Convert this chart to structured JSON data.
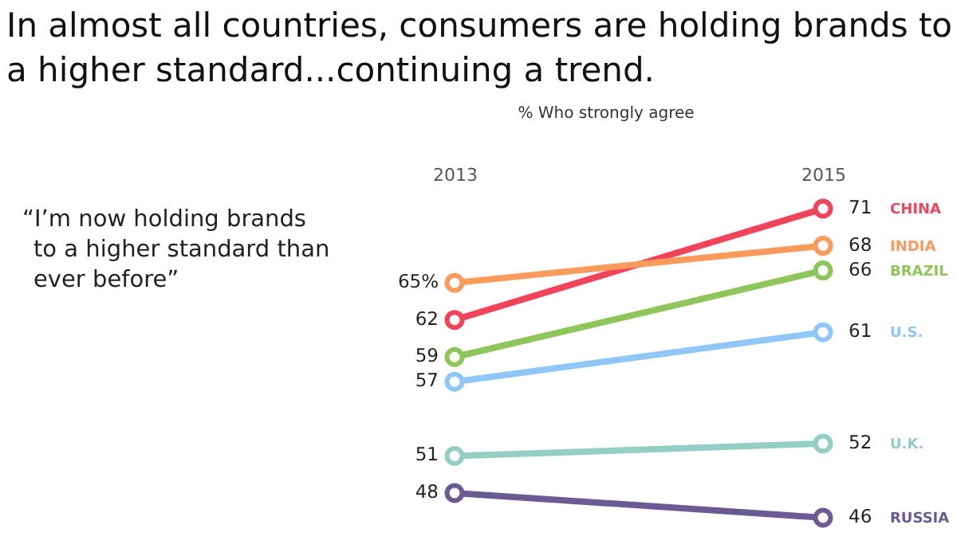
{
  "chart_data": {
    "type": "line",
    "title": "In almost all countries, consumers are holding brands to a higher standard...continuing a trend.",
    "subtitle": "% Who strongly agree",
    "annotations": [
      "“I’m now holding brands to a higher standard than ever before”"
    ],
    "categories": [
      "2013",
      "2015"
    ],
    "marker": "circle",
    "series": [
      {
        "name": "CHINA",
        "color": "#f2435b",
        "values": [
          62,
          71
        ],
        "value_labels": [
          "62",
          "71"
        ]
      },
      {
        "name": "INDIA",
        "color": "#fc9a5b",
        "values": [
          65,
          68
        ],
        "value_labels": [
          "65%",
          "68"
        ]
      },
      {
        "name": "BRAZIL",
        "color": "#8ec65a",
        "values": [
          59,
          66
        ],
        "value_labels": [
          "59",
          "66"
        ]
      },
      {
        "name": "U.S.",
        "color": "#8fc8f8",
        "values": [
          57,
          61
        ],
        "value_labels": [
          "57",
          "61"
        ]
      },
      {
        "name": "U.K.",
        "color": "#93cfc3",
        "values": [
          51,
          52
        ],
        "value_labels": [
          "51",
          "52"
        ]
      },
      {
        "name": "RUSSIA",
        "color": "#6b5b95",
        "values": [
          48,
          46
        ],
        "value_labels": [
          "48",
          "46"
        ]
      }
    ]
  }
}
